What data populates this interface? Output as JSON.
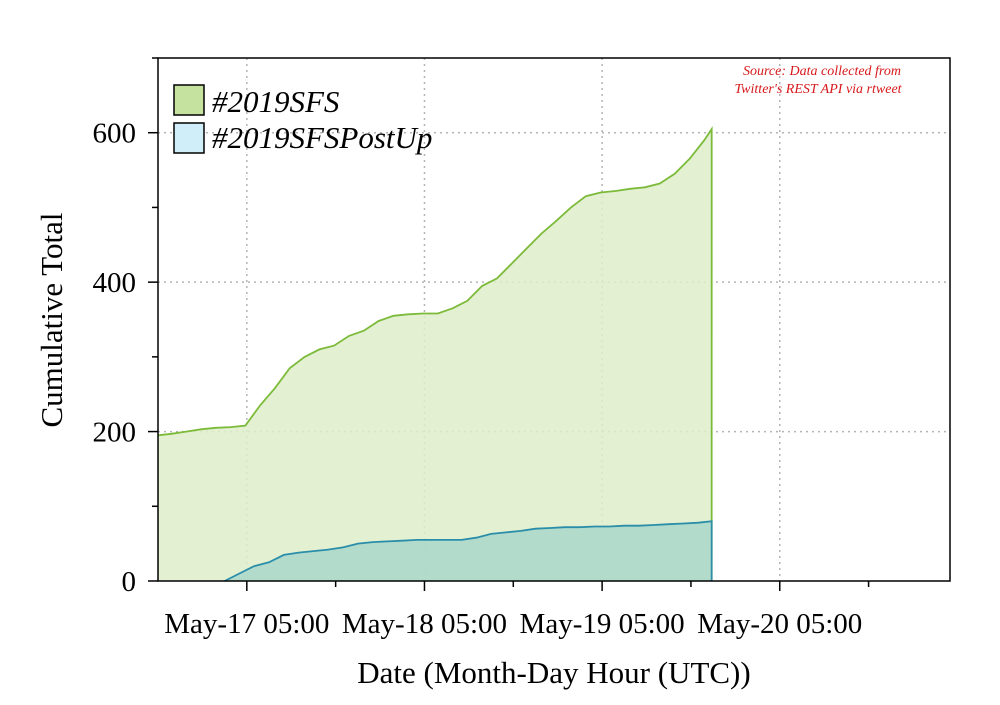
{
  "chart_data": {
    "type": "area",
    "xlabel": "Date (Month-Day Hour (UTC))",
    "ylabel": "Cumulative Total",
    "source_note_line1": "Source: Data collected from",
    "source_note_line2": "Twitter's REST API via rtweet",
    "x_unit": "hours since May-17 05:00 UTC",
    "xlim": [
      -12,
      95
    ],
    "ylim": [
      0,
      700
    ],
    "x_ticks": [
      {
        "x": 0,
        "label": "May-17 05:00"
      },
      {
        "x": 24,
        "label": "May-18 05:00"
      },
      {
        "x": 48,
        "label": "May-19 05:00"
      },
      {
        "x": 72,
        "label": "May-20 05:00"
      }
    ],
    "x_minor_ticks": [
      12,
      36,
      60,
      84
    ],
    "y_ticks": [
      {
        "y": 0,
        "label": "0"
      },
      {
        "y": 200,
        "label": "200"
      },
      {
        "y": 400,
        "label": "400"
      },
      {
        "y": 600,
        "label": "600"
      }
    ],
    "y_minor_ticks": [
      100,
      300,
      500,
      700
    ],
    "grid": true,
    "legend_position": "top-left",
    "series": [
      {
        "name": "#2019SFS",
        "stroke": "#7cbb3a",
        "fill": "#deedc9",
        "x": [
          -12,
          -10.2,
          -8.2,
          -6.2,
          -4.2,
          -2.2,
          -0.2,
          1.8,
          3.8,
          5.8,
          7.8,
          9.8,
          11.8,
          13.8,
          15.8,
          17.8,
          19.8,
          21.8,
          23.8,
          25.8,
          27.8,
          29.8,
          31.8,
          33.8,
          35.8,
          37.8,
          39.8,
          41.8,
          43.8,
          45.8,
          47.8,
          49.8,
          51.8,
          53.8,
          55.8,
          57.8,
          59.8,
          61.8,
          62.8
        ],
        "values": [
          195,
          197,
          200,
          203,
          205,
          206,
          208,
          235,
          258,
          285,
          300,
          310,
          315,
          328,
          335,
          348,
          355,
          357,
          358,
          358,
          365,
          375,
          395,
          405,
          425,
          445,
          465,
          482,
          500,
          515,
          520,
          522,
          525,
          527,
          532,
          545,
          565,
          590,
          605
        ]
      },
      {
        "name": "#2019SFSPostUp",
        "stroke": "#2a8eaa",
        "fill": "#a9d7cb",
        "x": [
          -3,
          -1,
          1,
          3,
          5,
          7,
          9,
          11,
          13,
          15,
          17,
          19,
          21,
          23,
          25,
          27,
          29,
          31,
          33,
          35,
          37,
          39,
          41,
          43,
          45,
          47,
          49,
          51,
          53,
          55,
          57,
          59,
          61,
          62.8
        ],
        "values": [
          0,
          10,
          20,
          25,
          35,
          38,
          40,
          42,
          45,
          50,
          52,
          53,
          54,
          55,
          55,
          55,
          55,
          58,
          63,
          65,
          67,
          70,
          71,
          72,
          72,
          73,
          73,
          74,
          74,
          75,
          76,
          77,
          78,
          80
        ]
      }
    ]
  }
}
